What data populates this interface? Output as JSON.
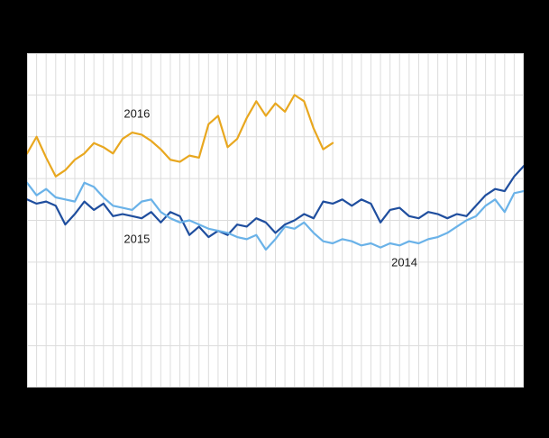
{
  "figure": {
    "frame_background": "#000000",
    "plot_background": "#ffffff",
    "gridline_color": "#dcdcdc"
  },
  "chart_data": {
    "type": "line",
    "title": "",
    "xlabel": "",
    "ylabel": "",
    "x_unit": "week",
    "xlim": [
      1,
      53
    ],
    "ylim": [
      0,
      8
    ],
    "grid": true,
    "legend_position": "inline-annotations",
    "x": [
      1,
      2,
      3,
      4,
      5,
      6,
      7,
      8,
      9,
      10,
      11,
      12,
      13,
      14,
      15,
      16,
      17,
      18,
      19,
      20,
      21,
      22,
      23,
      24,
      25,
      26,
      27,
      28,
      29,
      30,
      31,
      32,
      33,
      34,
      35,
      36,
      37,
      38,
      39,
      40,
      41,
      42,
      43,
      44,
      45,
      46,
      47,
      48,
      49,
      50,
      51,
      52,
      53
    ],
    "series": [
      {
        "name": "2016",
        "color": "#e8a71f",
        "stroke_width": 2.2,
        "values": [
          5.6,
          6.0,
          5.5,
          5.05,
          5.2,
          5.45,
          5.6,
          5.85,
          5.75,
          5.6,
          5.95,
          6.1,
          6.05,
          5.9,
          5.7,
          5.45,
          5.4,
          5.55,
          5.5,
          6.3,
          6.5,
          5.75,
          5.95,
          6.45,
          6.85,
          6.5,
          6.8,
          6.6,
          7.0,
          6.85,
          6.2,
          5.7,
          5.85
        ]
      },
      {
        "name": "2015",
        "color": "#1f4e9e",
        "stroke_width": 2.2,
        "values": [
          4.5,
          4.4,
          4.45,
          4.35,
          3.9,
          4.15,
          4.45,
          4.25,
          4.4,
          4.1,
          4.15,
          4.1,
          4.05,
          4.2,
          3.95,
          4.2,
          4.1,
          3.65,
          3.85,
          3.6,
          3.75,
          3.65,
          3.9,
          3.85,
          4.05,
          3.95,
          3.7,
          3.9,
          4.0,
          4.15,
          4.05,
          4.45,
          4.4,
          4.5,
          4.35,
          4.5,
          4.4,
          3.95,
          4.25,
          4.3,
          4.1,
          4.05,
          4.2,
          4.15,
          4.05,
          4.15,
          4.1,
          4.35,
          4.6,
          4.75,
          4.7,
          5.05,
          5.3
        ]
      },
      {
        "name": "2014",
        "color": "#6ab2e8",
        "stroke_width": 2.2,
        "values": [
          4.9,
          4.6,
          4.75,
          4.55,
          4.5,
          4.45,
          4.9,
          4.8,
          4.55,
          4.35,
          4.3,
          4.25,
          4.45,
          4.5,
          4.2,
          4.05,
          3.95,
          4.0,
          3.9,
          3.8,
          3.75,
          3.7,
          3.6,
          3.55,
          3.65,
          3.3,
          3.55,
          3.85,
          3.8,
          3.95,
          3.7,
          3.5,
          3.45,
          3.55,
          3.5,
          3.4,
          3.45,
          3.35,
          3.45,
          3.4,
          3.5,
          3.45,
          3.55,
          3.6,
          3.7,
          3.85,
          4.0,
          4.1,
          4.35,
          4.5,
          4.2,
          4.65,
          4.7
        ]
      }
    ],
    "annotations": [
      {
        "label": "2016",
        "week": 12.5,
        "value": 6.55
      },
      {
        "label": "2015",
        "week": 12.5,
        "value": 3.55
      },
      {
        "label": "2014",
        "week": 40.5,
        "value": 3.0
      }
    ]
  }
}
